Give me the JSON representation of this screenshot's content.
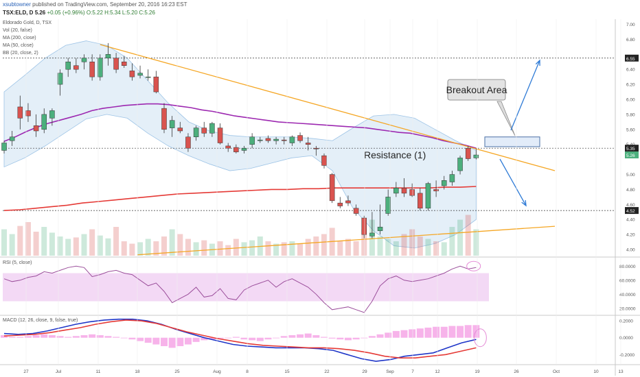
{
  "header": {
    "user": "xsubtowner",
    "published": "published on TradingView.com, September 20, 2016 16:23 EST",
    "symbol": "TSX:ELD, D",
    "price": "5.26",
    "change": "+0.05 (+0.96%)",
    "ohlc": "O:5.22 H:5.34 L:5.20 C:5.26"
  },
  "studies": {
    "main_title": "Eldorado Gold, D, TSX",
    "vol": "Vol (20, false)",
    "ma200": "MA (200, close)",
    "ma50": "MA (50, close)",
    "bb": "BB (20, close, 2)",
    "rsi": "RSI (5, close)",
    "macd": "MACD (12, 26, close, 9, false, true)"
  },
  "annotations": {
    "breakout": "Breakout Area",
    "resistance": "Resistance (1)"
  },
  "colors": {
    "up": "#4caf7d",
    "down": "#d9534f",
    "ma50": "#9c27b0",
    "ma200": "#e53935",
    "bb_fill": "#dbe9f6",
    "trend": "#f5a623",
    "arrow": "#2f7bd6",
    "rsi_line": "#9b4e9b",
    "rsi_band": "#f3d9f5",
    "macd_line": "#1e35c8",
    "signal_line": "#e53935",
    "histogram": "#f6a6e6"
  },
  "chart_data": [
    {
      "type": "candlestick",
      "title": "Eldorado Gold, D, TSX",
      "x_tick_labels": [
        "27",
        "Jul",
        "11",
        "18",
        "25",
        "Aug",
        "8",
        "15",
        "22",
        "29",
        "Sep",
        "7",
        "12",
        "19",
        "26",
        "Oct",
        "10",
        "13"
      ],
      "y_tick_labels": [
        "7.00",
        "6.80",
        "6.55",
        "6.40",
        "6.20",
        "6.00",
        "5.80",
        "5.60",
        "5.40",
        "5.35",
        "5.26",
        "5.00",
        "4.80",
        "4.60",
        "4.52",
        "4.40",
        "4.20",
        "4.00"
      ],
      "ylim": [
        3.9,
        7.05
      ],
      "price_labels": {
        "last": "5.26",
        "resistance": "5.35",
        "support": "4.52",
        "top": "6.55"
      },
      "candles": [
        {
          "o": 5.32,
          "h": 5.45,
          "l": 5.28,
          "c": 5.42
        },
        {
          "o": 5.45,
          "h": 5.58,
          "l": 5.38,
          "c": 5.5
        },
        {
          "o": 5.9,
          "h": 6.05,
          "l": 5.6,
          "c": 5.75
        },
        {
          "o": 5.85,
          "h": 5.95,
          "l": 5.7,
          "c": 5.78
        },
        {
          "o": 5.65,
          "h": 5.8,
          "l": 5.5,
          "c": 5.58
        },
        {
          "o": 5.6,
          "h": 5.88,
          "l": 5.55,
          "c": 5.8
        },
        {
          "o": 5.75,
          "h": 5.88,
          "l": 5.65,
          "c": 5.85
        },
        {
          "o": 6.2,
          "h": 6.4,
          "l": 6.05,
          "c": 6.35
        },
        {
          "o": 6.4,
          "h": 6.55,
          "l": 6.3,
          "c": 6.5
        },
        {
          "o": 6.45,
          "h": 6.55,
          "l": 6.35,
          "c": 6.4
        },
        {
          "o": 6.5,
          "h": 6.6,
          "l": 6.4,
          "c": 6.55
        },
        {
          "o": 6.5,
          "h": 6.6,
          "l": 6.25,
          "c": 6.3
        },
        {
          "o": 6.3,
          "h": 6.6,
          "l": 6.25,
          "c": 6.55
        },
        {
          "o": 6.55,
          "h": 6.75,
          "l": 6.45,
          "c": 6.6
        },
        {
          "o": 6.55,
          "h": 6.62,
          "l": 6.35,
          "c": 6.4
        },
        {
          "o": 6.5,
          "h": 6.58,
          "l": 6.42,
          "c": 6.45
        },
        {
          "o": 6.38,
          "h": 6.48,
          "l": 6.25,
          "c": 6.3
        },
        {
          "o": 6.32,
          "h": 6.45,
          "l": 6.28,
          "c": 6.35
        },
        {
          "o": 6.3,
          "h": 6.4,
          "l": 6.25,
          "c": 6.3
        },
        {
          "o": 6.3,
          "h": 6.38,
          "l": 6.08,
          "c": 6.1
        },
        {
          "o": 5.88,
          "h": 5.95,
          "l": 5.55,
          "c": 5.6
        },
        {
          "o": 5.62,
          "h": 5.78,
          "l": 5.5,
          "c": 5.72
        },
        {
          "o": 5.62,
          "h": 5.7,
          "l": 5.55,
          "c": 5.58
        },
        {
          "o": 5.5,
          "h": 5.55,
          "l": 5.3,
          "c": 5.35
        },
        {
          "o": 5.5,
          "h": 5.65,
          "l": 5.45,
          "c": 5.62
        },
        {
          "o": 5.62,
          "h": 5.7,
          "l": 5.5,
          "c": 5.55
        },
        {
          "o": 5.55,
          "h": 5.7,
          "l": 5.5,
          "c": 5.68
        },
        {
          "o": 5.62,
          "h": 5.68,
          "l": 5.4,
          "c": 5.42
        },
        {
          "o": 5.38,
          "h": 5.42,
          "l": 5.3,
          "c": 5.35
        },
        {
          "o": 5.36,
          "h": 5.4,
          "l": 5.28,
          "c": 5.3
        },
        {
          "o": 5.32,
          "h": 5.38,
          "l": 5.28,
          "c": 5.35
        },
        {
          "o": 5.4,
          "h": 5.55,
          "l": 5.35,
          "c": 5.5
        },
        {
          "o": 5.45,
          "h": 5.5,
          "l": 5.42,
          "c": 5.46
        },
        {
          "o": 5.48,
          "h": 5.52,
          "l": 5.42,
          "c": 5.45
        },
        {
          "o": 5.45,
          "h": 5.5,
          "l": 5.4,
          "c": 5.47
        },
        {
          "o": 5.46,
          "h": 5.5,
          "l": 5.4,
          "c": 5.45
        },
        {
          "o": 5.42,
          "h": 5.52,
          "l": 5.38,
          "c": 5.5
        },
        {
          "o": 5.52,
          "h": 5.56,
          "l": 5.42,
          "c": 5.45
        },
        {
          "o": 5.42,
          "h": 5.5,
          "l": 5.32,
          "c": 5.4
        },
        {
          "o": 5.35,
          "h": 5.38,
          "l": 5.25,
          "c": 5.34
        },
        {
          "o": 5.25,
          "h": 5.28,
          "l": 5.08,
          "c": 5.12
        },
        {
          "o": 5.0,
          "h": 5.02,
          "l": 4.62,
          "c": 4.65
        },
        {
          "o": 4.62,
          "h": 4.7,
          "l": 4.55,
          "c": 4.58
        },
        {
          "o": 4.65,
          "h": 4.72,
          "l": 4.58,
          "c": 4.62
        },
        {
          "o": 4.55,
          "h": 4.6,
          "l": 4.45,
          "c": 4.48
        },
        {
          "o": 4.42,
          "h": 4.45,
          "l": 4.15,
          "c": 4.2
        },
        {
          "o": 4.18,
          "h": 4.5,
          "l": 4.15,
          "c": 4.22
        },
        {
          "o": 4.25,
          "h": 4.6,
          "l": 4.2,
          "c": 4.3
        },
        {
          "o": 4.48,
          "h": 4.8,
          "l": 4.45,
          "c": 4.7
        },
        {
          "o": 4.75,
          "h": 4.9,
          "l": 4.7,
          "c": 4.82
        },
        {
          "o": 4.82,
          "h": 4.95,
          "l": 4.7,
          "c": 4.75
        },
        {
          "o": 4.8,
          "h": 4.88,
          "l": 4.7,
          "c": 4.72
        },
        {
          "o": 4.75,
          "h": 4.82,
          "l": 4.52,
          "c": 4.55
        },
        {
          "o": 4.55,
          "h": 4.9,
          "l": 4.52,
          "c": 4.88
        },
        {
          "o": 4.8,
          "h": 4.92,
          "l": 4.7,
          "c": 4.78
        },
        {
          "o": 4.85,
          "h": 4.98,
          "l": 4.8,
          "c": 4.92
        },
        {
          "o": 4.9,
          "h": 5.05,
          "l": 4.85,
          "c": 5.0
        },
        {
          "o": 5.05,
          "h": 5.25,
          "l": 5.0,
          "c": 5.22
        },
        {
          "o": 5.35,
          "h": 5.38,
          "l": 5.18,
          "c": 5.21
        },
        {
          "o": 5.22,
          "h": 5.34,
          "l": 5.2,
          "c": 5.26
        }
      ],
      "ma50": [
        5.44,
        5.5,
        5.57,
        5.63,
        5.68,
        5.72,
        5.76,
        5.8,
        5.85,
        5.88,
        5.9,
        5.92,
        5.93,
        5.94,
        5.94,
        5.93,
        5.91,
        5.89,
        5.86,
        5.84,
        5.81,
        5.78,
        5.76,
        5.74,
        5.72,
        5.7,
        5.69,
        5.68,
        5.67,
        5.66,
        5.65,
        5.64,
        5.63,
        5.62,
        5.6,
        5.58,
        5.56,
        5.55,
        5.52,
        5.49,
        5.45,
        5.42,
        5.39,
        5.35
      ],
      "ma200": [
        4.52,
        4.53,
        4.55,
        4.57,
        4.59,
        4.62,
        4.64,
        4.66,
        4.68,
        4.7,
        4.72,
        4.74,
        4.75,
        4.76,
        4.77,
        4.78,
        4.79,
        4.8,
        4.8,
        4.81,
        4.81,
        4.82,
        4.82,
        4.82,
        4.82,
        4.82,
        4.82,
        4.82,
        4.83,
        4.83,
        4.84
      ],
      "bb_upper": [
        6.1,
        6.32,
        6.55,
        6.72,
        6.78,
        6.72,
        6.55,
        6.25,
        5.95,
        5.7,
        5.58,
        5.52,
        5.5,
        5.5,
        5.5,
        5.48,
        5.45,
        5.62,
        5.78,
        5.8,
        5.75,
        5.6,
        5.45,
        5.32
      ],
      "bb_lower": [
        5.1,
        5.22,
        5.38,
        5.56,
        5.74,
        5.8,
        5.75,
        5.55,
        5.38,
        5.25,
        5.14,
        5.05,
        5.08,
        5.15,
        5.22,
        5.25,
        5.05,
        4.55,
        4.25,
        4.05,
        4.02,
        4.08,
        4.2,
        4.4
      ],
      "volume": [
        0.55,
        0.45,
        0.62,
        0.7,
        0.5,
        0.6,
        0.48,
        0.4,
        0.35,
        0.38,
        0.45,
        0.55,
        0.42,
        0.36,
        0.6,
        0.3,
        0.25,
        0.28,
        0.35,
        0.3,
        0.4,
        0.55,
        0.45,
        0.35,
        0.28,
        0.32,
        0.25,
        0.3,
        0.22,
        0.35,
        0.28,
        0.32,
        0.4,
        0.3,
        0.25,
        0.28,
        0.3,
        0.25,
        0.35,
        0.4,
        0.45,
        0.58,
        0.3,
        0.35,
        0.3,
        0.55,
        0.75,
        0.4,
        0.35,
        0.3,
        0.45,
        0.55,
        0.4,
        0.35,
        0.3,
        0.28,
        0.6,
        0.75,
        0.85,
        0.55
      ],
      "levels": [
        6.55,
        5.35,
        4.52
      ],
      "breakout_zone": [
        5.37,
        5.5
      ]
    },
    {
      "type": "line",
      "title": "RSI (5, close)",
      "y_tick_labels": [
        "80.0000",
        "60.0000",
        "40.0000",
        "20.0000"
      ],
      "ylim": [
        10,
        90
      ],
      "band": [
        30,
        70
      ],
      "values": [
        62,
        58,
        60,
        64,
        66,
        72,
        70,
        74,
        78,
        80,
        78,
        65,
        68,
        72,
        74,
        70,
        68,
        60,
        52,
        56,
        44,
        28,
        34,
        40,
        50,
        36,
        38,
        48,
        34,
        32,
        46,
        52,
        56,
        60,
        50,
        58,
        62,
        56,
        50,
        40,
        28,
        18,
        20,
        22,
        18,
        14,
        30,
        52,
        62,
        66,
        60,
        58,
        60,
        62,
        66,
        70,
        76,
        80,
        76,
        78
      ]
    },
    {
      "type": "bar",
      "title": "MACD (12, 26, close, 9, false, true)",
      "y_tick_labels": [
        "0.2000",
        "0.0000",
        "-0.2000"
      ],
      "ylim": [
        -0.32,
        0.25
      ],
      "macd": [
        0.05,
        0.04,
        0.05,
        0.08,
        0.12,
        0.16,
        0.19,
        0.21,
        0.22,
        0.22,
        0.2,
        0.16,
        0.1,
        0.05,
        0.0,
        -0.04,
        -0.08,
        -0.1,
        -0.11,
        -0.12,
        -0.12,
        -0.12,
        -0.13,
        -0.15,
        -0.2,
        -0.25,
        -0.28,
        -0.26,
        -0.22,
        -0.2,
        -0.18,
        -0.12,
        -0.06,
        -0.02
      ],
      "signal": [
        0.02,
        0.03,
        0.04,
        0.06,
        0.09,
        0.12,
        0.16,
        0.19,
        0.21,
        0.2,
        0.17,
        0.12,
        0.07,
        0.03,
        -0.01,
        -0.04,
        -0.07,
        -0.09,
        -0.1,
        -0.11,
        -0.12,
        -0.12,
        -0.13,
        -0.15,
        -0.18,
        -0.22,
        -0.24,
        -0.24,
        -0.22,
        -0.2,
        -0.16,
        -0.12
      ],
      "histogram": [
        0.03,
        0.01,
        0.01,
        0.02,
        0.03,
        0.04,
        0.03,
        0.02,
        0.01,
        0.02,
        0.03,
        0.04,
        0.03,
        0.02,
        0.01,
        0.0,
        -0.02,
        -0.04,
        -0.06,
        -0.08,
        -0.1,
        -0.12,
        -0.1,
        -0.08,
        -0.05,
        -0.03,
        -0.02,
        -0.01,
        0.0,
        0.01,
        -0.02,
        -0.03,
        -0.04,
        -0.02,
        0.0,
        0.02,
        0.03,
        0.04,
        0.05,
        0.03,
        0.01,
        -0.01,
        -0.02,
        -0.03,
        -0.02,
        0.0,
        0.02,
        0.04,
        0.06,
        0.08,
        0.09,
        0.1,
        0.11,
        0.12,
        0.13,
        0.13,
        0.14,
        0.14,
        0.15,
        0.15
      ]
    }
  ]
}
